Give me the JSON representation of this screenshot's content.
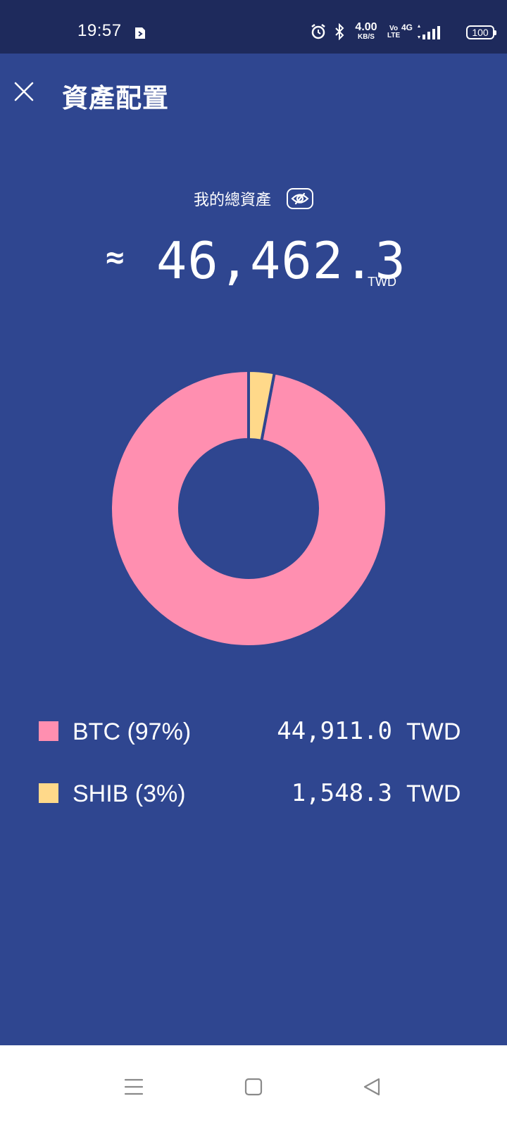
{
  "status_bar": {
    "time": "19:57",
    "net_speed_value": "4.00",
    "net_speed_unit": "KB/S",
    "volte_top": "Vo",
    "volte_bottom": "LTE",
    "network_type": "4G",
    "battery_level": "100"
  },
  "header": {
    "title": "資產配置"
  },
  "summary": {
    "label": "我的總資產",
    "approx_symbol": "≈",
    "total_value": "46,462.3",
    "currency": "TWD"
  },
  "chart_data": {
    "type": "pie",
    "style": "donut",
    "slices": [
      {
        "name": "BTC",
        "percent": 97,
        "value": 44911.0,
        "color": "#ff8fb0"
      },
      {
        "name": "SHIB",
        "percent": 3,
        "value": 1548.3,
        "color": "#ffd98a"
      }
    ]
  },
  "legend": [
    {
      "name": "BTC (97%)",
      "value": "44,911.0",
      "unit": "TWD",
      "color": "#ff8fb0"
    },
    {
      "name": "SHIB (3%)",
      "value": "1,548.3",
      "unit": "TWD",
      "color": "#ffd98a"
    }
  ],
  "nav_bar": {
    "icons": [
      "menu-icon",
      "home-icon",
      "back-icon"
    ]
  },
  "colors": {
    "background": "#2f4690",
    "status_bar": "#1e2a5c",
    "btc": "#ff8fb0",
    "shib": "#ffd98a"
  }
}
